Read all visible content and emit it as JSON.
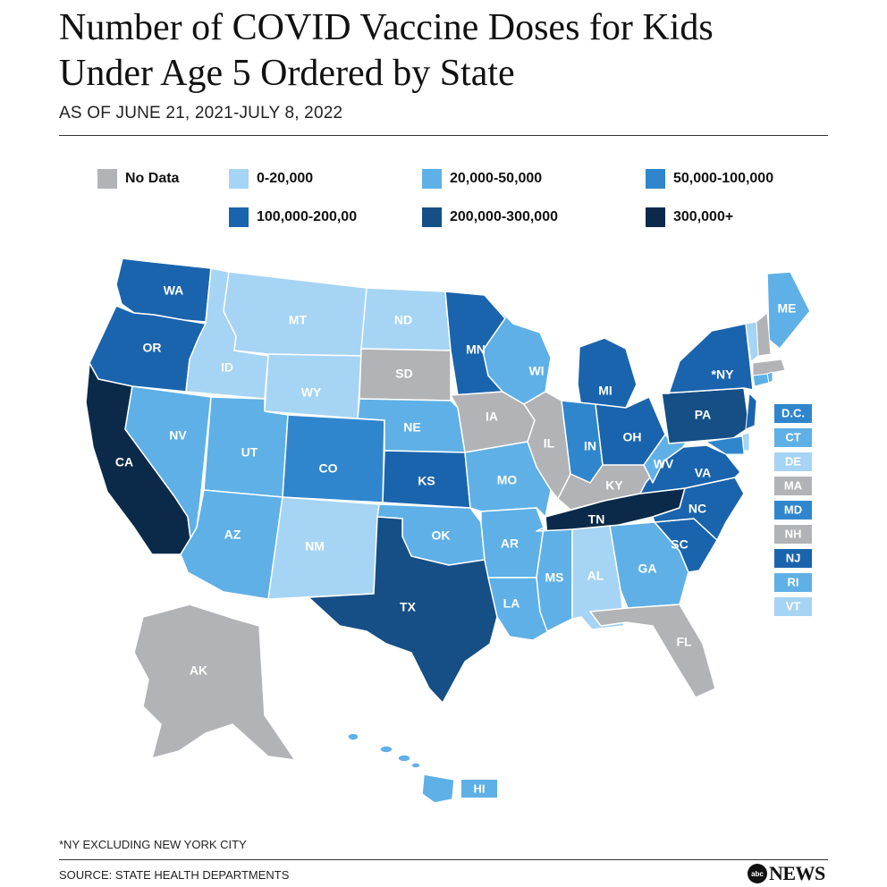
{
  "header": {
    "title_line1": "Number of COVID Vaccine Doses for Kids",
    "title_line2": "Under Age 5 Ordered by State",
    "subtitle": "AS OF JUNE 21, 2021-JULY 8, 2022"
  },
  "legend": [
    {
      "key": "nodata",
      "label": "No Data",
      "color": "#b1b3b6"
    },
    {
      "key": "t1",
      "label": "0-20,000",
      "color": "#a6d4f4"
    },
    {
      "key": "t2",
      "label": "20,000-50,000",
      "color": "#5fb0e6"
    },
    {
      "key": "t3",
      "label": "50,000-100,000",
      "color": "#2f86cc"
    },
    {
      "key": "t4",
      "label": "100,000-200,00",
      "color": "#1a64ad"
    },
    {
      "key": "t5",
      "label": "200,000-300,000",
      "color": "#154f86"
    },
    {
      "key": "t6",
      "label": "300,000+",
      "color": "#0b2a4a"
    }
  ],
  "states": [
    {
      "abbr": "WA",
      "tier": "t4"
    },
    {
      "abbr": "OR",
      "tier": "t4"
    },
    {
      "abbr": "CA",
      "tier": "t6"
    },
    {
      "abbr": "ID",
      "tier": "t1"
    },
    {
      "abbr": "NV",
      "tier": "t2"
    },
    {
      "abbr": "MT",
      "tier": "t1"
    },
    {
      "abbr": "WY",
      "tier": "t1"
    },
    {
      "abbr": "UT",
      "tier": "t2"
    },
    {
      "abbr": "AZ",
      "tier": "t2"
    },
    {
      "abbr": "CO",
      "tier": "t3"
    },
    {
      "abbr": "NM",
      "tier": "t1"
    },
    {
      "abbr": "ND",
      "tier": "t1"
    },
    {
      "abbr": "SD",
      "tier": "nodata"
    },
    {
      "abbr": "NE",
      "tier": "t2"
    },
    {
      "abbr": "KS",
      "tier": "t4"
    },
    {
      "abbr": "OK",
      "tier": "t2"
    },
    {
      "abbr": "TX",
      "tier": "t5"
    },
    {
      "abbr": "MN",
      "tier": "t4"
    },
    {
      "abbr": "IA",
      "tier": "nodata"
    },
    {
      "abbr": "MO",
      "tier": "t2"
    },
    {
      "abbr": "AR",
      "tier": "t2"
    },
    {
      "abbr": "LA",
      "tier": "t2"
    },
    {
      "abbr": "WI",
      "tier": "t2"
    },
    {
      "abbr": "IL",
      "tier": "nodata"
    },
    {
      "abbr": "MI",
      "tier": "t4"
    },
    {
      "abbr": "IN",
      "tier": "t3"
    },
    {
      "abbr": "OH",
      "tier": "t4"
    },
    {
      "abbr": "KY",
      "tier": "nodata"
    },
    {
      "abbr": "TN",
      "tier": "t6"
    },
    {
      "abbr": "MS",
      "tier": "t2"
    },
    {
      "abbr": "AL",
      "tier": "t1"
    },
    {
      "abbr": "GA",
      "tier": "t2"
    },
    {
      "abbr": "FL",
      "tier": "nodata"
    },
    {
      "abbr": "SC",
      "tier": "t4"
    },
    {
      "abbr": "NC",
      "tier": "t4"
    },
    {
      "abbr": "VA",
      "tier": "t4"
    },
    {
      "abbr": "WV",
      "tier": "t2"
    },
    {
      "abbr": "PA",
      "tier": "t5"
    },
    {
      "abbr": "*NY",
      "tier": "t4"
    },
    {
      "abbr": "ME",
      "tier": "t2"
    },
    {
      "abbr": "AK",
      "tier": "nodata"
    },
    {
      "abbr": "HI",
      "tier": "t2"
    }
  ],
  "small_states": [
    {
      "abbr": "D.C.",
      "tier": "t3"
    },
    {
      "abbr": "CT",
      "tier": "t2"
    },
    {
      "abbr": "DE",
      "tier": "t1"
    },
    {
      "abbr": "MA",
      "tier": "nodata"
    },
    {
      "abbr": "MD",
      "tier": "t3"
    },
    {
      "abbr": "NH",
      "tier": "nodata"
    },
    {
      "abbr": "NJ",
      "tier": "t4"
    },
    {
      "abbr": "RI",
      "tier": "t2"
    },
    {
      "abbr": "VT",
      "tier": "t1"
    }
  ],
  "footer": {
    "footnote": "*NY EXCLUDING NEW YORK CITY",
    "source": "SOURCE: STATE HEALTH DEPARTMENTS",
    "logo_mark": "abc",
    "logo_text": "NEWS"
  }
}
